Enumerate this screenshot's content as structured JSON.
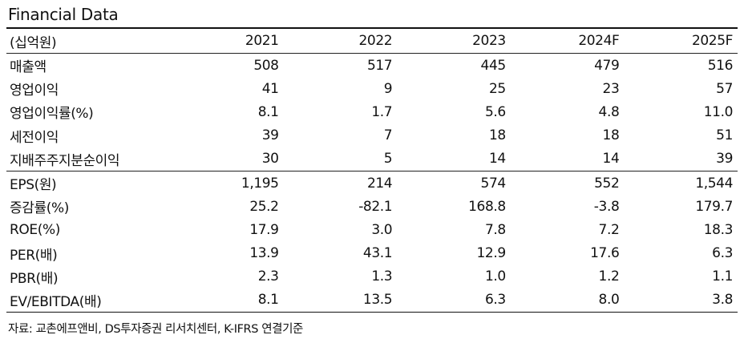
{
  "title": "Financial Data",
  "header": {
    "label": "(십억원)",
    "years": [
      "2021",
      "2022",
      "2023",
      "2024F",
      "2025F"
    ]
  },
  "rows": [
    {
      "label": "매출액",
      "values": [
        "508",
        "517",
        "445",
        "479",
        "516"
      ]
    },
    {
      "label": "영업이익",
      "values": [
        "41",
        "9",
        "25",
        "23",
        "57"
      ]
    },
    {
      "label": "영업이익률(%)",
      "values": [
        "8.1",
        "1.7",
        "5.6",
        "4.8",
        "11.0"
      ]
    },
    {
      "label": "세전이익",
      "values": [
        "39",
        "7",
        "18",
        "18",
        "51"
      ]
    },
    {
      "label": "지배주주지분순이익",
      "values": [
        "30",
        "5",
        "14",
        "14",
        "39"
      ]
    },
    {
      "label": "EPS(원)",
      "values": [
        "1,195",
        "214",
        "574",
        "552",
        "1,544"
      ]
    },
    {
      "label": "증감률(%)",
      "values": [
        "25.2",
        "-82.1",
        "168.8",
        "-3.8",
        "179.7"
      ]
    },
    {
      "label": "ROE(%)",
      "values": [
        "17.9",
        "3.0",
        "7.8",
        "7.2",
        "18.3"
      ]
    },
    {
      "label": "PER(배)",
      "values": [
        "13.9",
        "43.1",
        "12.9",
        "17.6",
        "6.3"
      ]
    },
    {
      "label": "PBR(배)",
      "values": [
        "2.3",
        "1.3",
        "1.0",
        "1.2",
        "1.1"
      ]
    },
    {
      "label": "EV/EBITDA(배)",
      "values": [
        "8.1",
        "13.5",
        "6.3",
        "8.0",
        "3.8"
      ]
    }
  ],
  "source": "자료: 교촌에프앤비, DS투자증권 리서치센터, K-IFRS 연결기준"
}
